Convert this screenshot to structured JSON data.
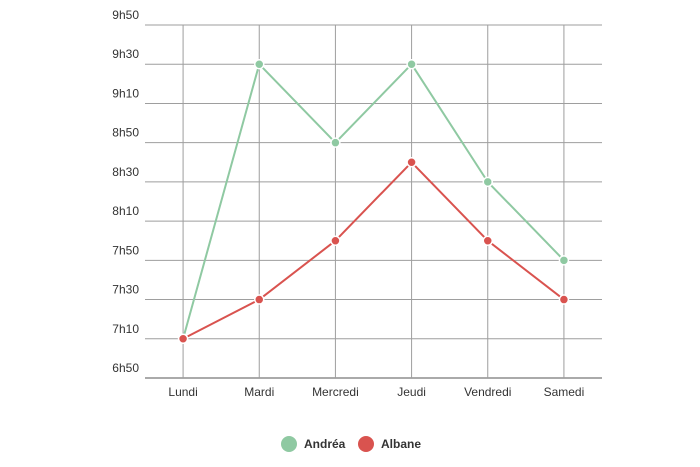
{
  "chart_data": {
    "type": "line",
    "categories": [
      "Lundi",
      "Mardi",
      "Mercredi",
      "Jeudi",
      "Vendredi",
      "Samedi"
    ],
    "y_tick_labels": [
      "6h50",
      "7h10",
      "7h30",
      "7h50",
      "8h10",
      "8h30",
      "8h50",
      "9h10",
      "9h30",
      "9h50"
    ],
    "y_unit": "minutes since midnight",
    "ylim": [
      410,
      590
    ],
    "y_tick_step": 20,
    "grid": true,
    "legend_position": "bottom",
    "series": [
      {
        "name": "Andréa",
        "color": "#8fc9a2",
        "values": [
          430,
          570,
          530,
          570,
          510,
          470
        ]
      },
      {
        "name": "Albane",
        "color": "#d9534f",
        "values": [
          430,
          450,
          480,
          520,
          480,
          450
        ]
      }
    ]
  }
}
